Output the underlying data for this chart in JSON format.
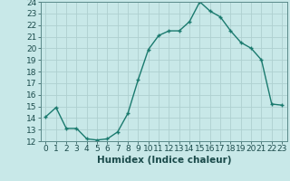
{
  "x": [
    0,
    1,
    2,
    3,
    4,
    5,
    6,
    7,
    8,
    9,
    10,
    11,
    12,
    13,
    14,
    15,
    16,
    17,
    18,
    19,
    20,
    21,
    22,
    23
  ],
  "y": [
    14.1,
    14.9,
    13.1,
    13.1,
    12.2,
    12.1,
    12.2,
    12.8,
    14.4,
    17.3,
    19.9,
    21.1,
    21.5,
    21.5,
    22.3,
    24.0,
    23.2,
    22.7,
    21.5,
    20.5,
    20.0,
    19.0,
    15.2,
    15.1
  ],
  "line_color": "#1a7a6e",
  "marker": "+",
  "bg_color": "#c8e8e8",
  "grid_color": "#aed0d0",
  "xlabel": "Humidex (Indice chaleur)",
  "ylim": [
    12,
    24
  ],
  "xlim": [
    -0.5,
    23.5
  ],
  "yticks": [
    12,
    13,
    14,
    15,
    16,
    17,
    18,
    19,
    20,
    21,
    22,
    23,
    24
  ],
  "xticks": [
    0,
    1,
    2,
    3,
    4,
    5,
    6,
    7,
    8,
    9,
    10,
    11,
    12,
    13,
    14,
    15,
    16,
    17,
    18,
    19,
    20,
    21,
    22,
    23
  ],
  "xtick_labels": [
    "0",
    "1",
    "2",
    "3",
    "4",
    "5",
    "6",
    "7",
    "8",
    "9",
    "10",
    "11",
    "12",
    "13",
    "14",
    "15",
    "16",
    "17",
    "18",
    "19",
    "20",
    "21",
    "22",
    "23"
  ],
  "linewidth": 1.0,
  "markersize": 3.5,
  "tick_fontsize": 6.5,
  "xlabel_fontsize": 7.5
}
